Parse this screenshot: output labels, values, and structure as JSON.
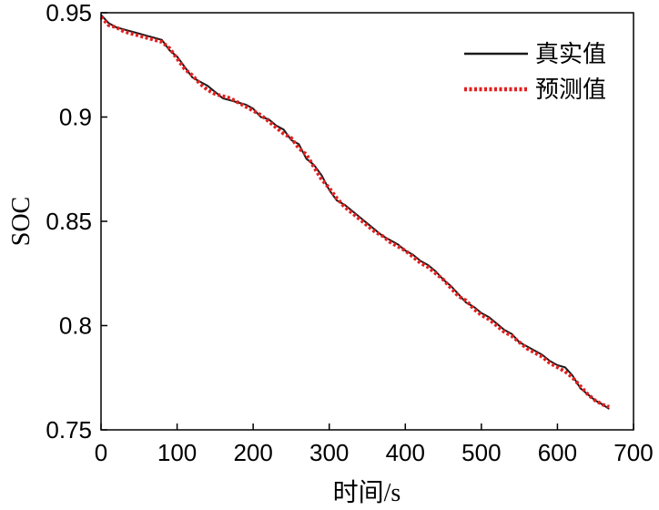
{
  "chart_data": {
    "type": "line",
    "xlabel": "时间/s",
    "ylabel": "SOC",
    "xlim": [
      0,
      700
    ],
    "ylim": [
      0.75,
      0.95
    ],
    "xticks": [
      0,
      100,
      200,
      300,
      400,
      500,
      600,
      700
    ],
    "xtick_labels": [
      "0",
      "100",
      "200",
      "300",
      "400",
      "500",
      "600",
      "700"
    ],
    "yticks": [
      0.75,
      0.8,
      0.85,
      0.9,
      0.95
    ],
    "ytick_labels": [
      "0.75",
      "0.8",
      "0.85",
      "0.9",
      "0.95"
    ],
    "grid": false,
    "legend_position": "top-right",
    "series": [
      {
        "name": "真实值",
        "color": "#1a1a1a",
        "style": "solid",
        "x": [
          0,
          10,
          20,
          30,
          40,
          50,
          60,
          70,
          80,
          90,
          100,
          110,
          120,
          130,
          140,
          150,
          160,
          170,
          180,
          190,
          200,
          210,
          220,
          230,
          240,
          250,
          260,
          270,
          280,
          290,
          300,
          310,
          320,
          330,
          340,
          350,
          360,
          370,
          380,
          390,
          400,
          410,
          420,
          430,
          440,
          450,
          460,
          470,
          480,
          490,
          500,
          510,
          520,
          530,
          540,
          550,
          560,
          570,
          580,
          590,
          600,
          610,
          620,
          630,
          640,
          650,
          660,
          668
        ],
        "y": [
          0.949,
          0.945,
          0.943,
          0.942,
          0.941,
          0.94,
          0.939,
          0.938,
          0.937,
          0.932,
          0.929,
          0.924,
          0.919,
          0.917,
          0.915,
          0.912,
          0.909,
          0.908,
          0.907,
          0.906,
          0.904,
          0.9,
          0.899,
          0.896,
          0.894,
          0.889,
          0.887,
          0.88,
          0.877,
          0.872,
          0.865,
          0.86,
          0.858,
          0.855,
          0.852,
          0.849,
          0.846,
          0.843,
          0.841,
          0.839,
          0.836,
          0.834,
          0.831,
          0.829,
          0.826,
          0.822,
          0.819,
          0.815,
          0.811,
          0.809,
          0.806,
          0.804,
          0.801,
          0.798,
          0.796,
          0.792,
          0.79,
          0.788,
          0.786,
          0.783,
          0.781,
          0.78,
          0.776,
          0.77,
          0.767,
          0.764,
          0.762,
          0.76
        ]
      },
      {
        "name": "预测值",
        "color": "#e02020",
        "style": "dotted",
        "x": [
          0,
          10,
          20,
          30,
          40,
          50,
          60,
          70,
          80,
          90,
          100,
          110,
          120,
          130,
          140,
          150,
          160,
          170,
          180,
          190,
          200,
          210,
          220,
          230,
          240,
          250,
          260,
          270,
          280,
          290,
          300,
          310,
          320,
          330,
          340,
          350,
          360,
          370,
          380,
          390,
          400,
          410,
          420,
          430,
          440,
          450,
          460,
          470,
          480,
          490,
          500,
          510,
          520,
          530,
          540,
          550,
          560,
          570,
          580,
          590,
          600,
          610,
          620,
          630,
          640,
          650,
          660,
          668
        ],
        "y": [
          0.948,
          0.944,
          0.943,
          0.941,
          0.94,
          0.939,
          0.938,
          0.937,
          0.936,
          0.933,
          0.928,
          0.923,
          0.92,
          0.916,
          0.913,
          0.911,
          0.91,
          0.909,
          0.907,
          0.905,
          0.903,
          0.901,
          0.898,
          0.895,
          0.892,
          0.89,
          0.885,
          0.882,
          0.876,
          0.87,
          0.866,
          0.861,
          0.857,
          0.854,
          0.851,
          0.848,
          0.845,
          0.843,
          0.84,
          0.838,
          0.836,
          0.833,
          0.83,
          0.828,
          0.825,
          0.822,
          0.818,
          0.814,
          0.812,
          0.808,
          0.805,
          0.803,
          0.8,
          0.797,
          0.795,
          0.792,
          0.789,
          0.787,
          0.785,
          0.782,
          0.78,
          0.778,
          0.775,
          0.771,
          0.767,
          0.764,
          0.762,
          0.761
        ]
      }
    ]
  }
}
